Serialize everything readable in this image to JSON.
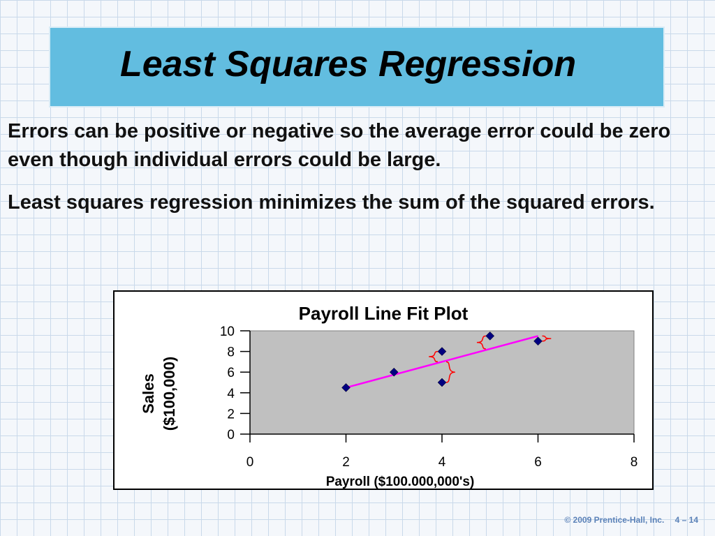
{
  "slide": {
    "title": "Least Squares Regression",
    "paragraphs": [
      "Errors can be positive or negative so the average error could be zero even though individual errors could be large.",
      "Least squares regression minimizes the sum of the squared errors."
    ],
    "footer_copyright": "© 2009 Prentice-Hall, Inc.",
    "footer_page": "4 – 14"
  },
  "chart_data": {
    "type": "scatter",
    "title": "Payroll Line Fit  Plot",
    "xlabel": "Payroll ($100.000,000's)",
    "ylabel_line1": "Sales",
    "ylabel_line2": "($100,000)",
    "xlim": [
      0,
      8
    ],
    "ylim": [
      0,
      10
    ],
    "x_ticks": [
      "0",
      "2",
      "4",
      "6",
      "8"
    ],
    "y_ticks": [
      "0",
      "2",
      "4",
      "6",
      "8",
      "10"
    ],
    "points": [
      {
        "x": 2,
        "y": 4.5
      },
      {
        "x": 3,
        "y": 6
      },
      {
        "x": 4,
        "y": 8
      },
      {
        "x": 4,
        "y": 5
      },
      {
        "x": 5,
        "y": 9.5
      },
      {
        "x": 6,
        "y": 9
      }
    ],
    "fit_line": {
      "x": [
        2,
        6
      ],
      "y": [
        4.5,
        9.5
      ]
    },
    "plot_background": "#c0c0c0",
    "marker_color": "#000080",
    "line_color": "#ff00ff",
    "error_bracket_color": "#ff0000",
    "grid": false,
    "legend": "none"
  }
}
